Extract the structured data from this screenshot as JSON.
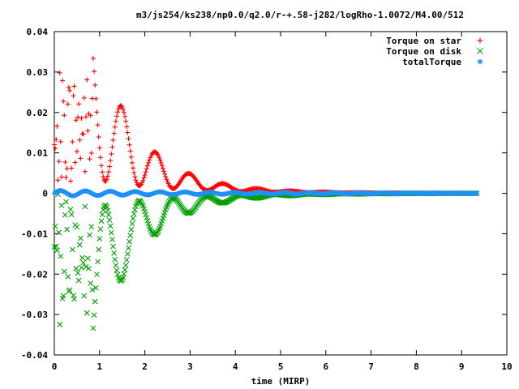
{
  "chart_data": {
    "type": "scatter",
    "title": "m3/js254/ks238/np0.0/q2.0/r-+.58-j282/logRho-1.0072/M4.00/512",
    "xlabel": "time (MIRP)",
    "ylabel": "",
    "xlim": [
      0,
      10
    ],
    "ylim": [
      -0.04,
      0.04
    ],
    "x_ticks": [
      "0",
      "1",
      "2",
      "3",
      "4",
      "5",
      "6",
      "7",
      "8",
      "9",
      "10"
    ],
    "y_ticks": [
      "-0.04",
      "-0.03",
      "-0.02",
      "-0.01",
      "0",
      "0.01",
      "0.02",
      "0.03",
      "0.04"
    ],
    "grid": false,
    "legend_position": "top-right",
    "t_max": 9.35,
    "series": [
      {
        "name": "Torque on star",
        "marker": "plus",
        "color": "#ff0000",
        "description": "Noisy 0.0-0.8 then damped oscillation around 0.011 decaying to ~0",
        "envelope": [
          [
            0.0,
            0.013
          ],
          [
            1.0,
            0.01
          ],
          [
            1.5,
            0.018
          ],
          [
            2.3,
            0.012
          ],
          [
            3.0,
            0.006
          ],
          [
            4.0,
            0.002
          ],
          [
            5.0,
            0.001
          ],
          [
            6.0,
            0.0008
          ],
          [
            9.35,
            0.0004
          ]
        ]
      },
      {
        "name": "Torque on disk",
        "marker": "x",
        "color": "#00a000",
        "description": "Mirror of star torque, negative",
        "envelope": [
          [
            0.0,
            -0.013
          ],
          [
            1.0,
            -0.01
          ],
          [
            1.5,
            -0.018
          ],
          [
            2.3,
            -0.012
          ],
          [
            3.0,
            -0.006
          ],
          [
            4.0,
            -0.002
          ],
          [
            5.0,
            -0.001
          ],
          [
            6.0,
            -0.0008
          ],
          [
            9.35,
            -0.0004
          ]
        ]
      },
      {
        "name": "totalTorque",
        "marker": "star",
        "color": "#1e90ff",
        "description": "Small oscillation near zero",
        "envelope": [
          [
            0.0,
            0.0006
          ],
          [
            2.0,
            0.0004
          ],
          [
            4.0,
            0.0002
          ],
          [
            9.35,
            0.0
          ]
        ]
      }
    ]
  }
}
